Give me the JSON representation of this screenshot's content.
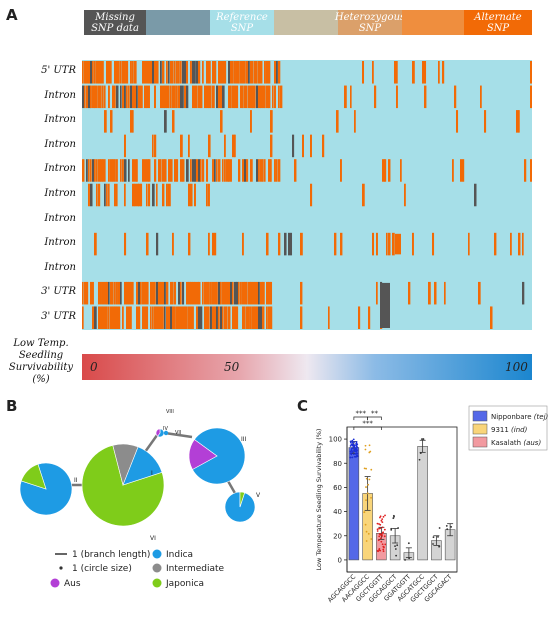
{
  "panels": {
    "a": "A",
    "b": "B",
    "c": "C"
  },
  "snp_legend": {
    "missing": "Missing SNP data",
    "reference": "Reference SNP",
    "heterozygous": "Heterozygous SNP",
    "alternate": "Alternate SNP",
    "colors": [
      "#555555",
      "#7a9aa8",
      "#a6dfe8",
      "#c8bfa4",
      "#dba06a",
      "#ef8e3e",
      "#f26a06"
    ]
  },
  "heatmap": {
    "rows": [
      "5' UTR",
      "Intron",
      "Intron",
      "Intron",
      "Intron",
      "Intron",
      "Intron",
      "Intron",
      "Intron",
      "3' UTR",
      "3' UTR"
    ],
    "colors": {
      "reference": "#a6dfe8",
      "alternate": "#f26a06",
      "missing": "#555555"
    }
  },
  "survivability_scale": {
    "label": "Low Temp. Seedling Survivability (%)",
    "min": "0",
    "mid": "50",
    "max": "100",
    "colors": [
      "#d94a4a",
      "#eee8f0",
      "#1b86cf"
    ]
  },
  "network": {
    "nodes": [
      {
        "id": "I",
        "label": "I",
        "slices": [
          {
            "group": "Japonica",
            "value": 0.76
          },
          {
            "group": "Intermediate",
            "value": 0.1
          },
          {
            "group": "Indica",
            "value": 0.14
          }
        ]
      },
      {
        "id": "II",
        "label": "II",
        "slices": [
          {
            "group": "Indica",
            "value": 0.85
          },
          {
            "group": "Japonica",
            "value": 0.15
          }
        ]
      },
      {
        "id": "III",
        "label": "III",
        "slices": [
          {
            "group": "Indica",
            "value": 0.82
          },
          {
            "group": "Aus",
            "value": 0.18
          }
        ]
      },
      {
        "id": "IV",
        "label": "IV",
        "slices": [
          {
            "group": "Indica",
            "value": 0.6
          },
          {
            "group": "Aus",
            "value": 0.4
          }
        ]
      },
      {
        "id": "V",
        "label": "V",
        "slices": [
          {
            "group": "Indica",
            "value": 0.95
          },
          {
            "group": "Japonica",
            "value": 0.05
          }
        ]
      },
      {
        "id": "VI",
        "label": "VI",
        "slices": [
          {
            "group": "Japonica",
            "value": 1.0
          }
        ]
      },
      {
        "id": "VII",
        "label": "VII",
        "slices": [
          {
            "group": "Indica",
            "value": 1.0
          }
        ]
      },
      {
        "id": "VIII",
        "label": "VIII",
        "slices": [
          {
            "group": "Indica",
            "value": 1.0
          }
        ]
      }
    ],
    "legend": {
      "branch": "1 (branch length)",
      "circle": "1 (circle size)",
      "items": [
        {
          "name": "Indica",
          "color": "#1e9be4"
        },
        {
          "name": "Intermediate",
          "color": "#8c8c8c"
        },
        {
          "name": "Aus",
          "color": "#b33fd6"
        },
        {
          "name": "Japonica",
          "color": "#7fcc1a"
        }
      ]
    }
  },
  "chart_data": {
    "type": "bar",
    "title": "",
    "ylabel": "Low Temperature Seedling Survivability (%)",
    "ylim": [
      -10,
      110
    ],
    "yticks": [
      "0",
      "20",
      "40",
      "60",
      "80",
      "100"
    ],
    "categories": [
      "AGCAGGCC",
      "AACAGGCC",
      "GGCTGGTT",
      "GGCAGGCT",
      "GGATGGTT",
      "AGCATGCC",
      "GGCTGGCT",
      "GGCAGACT"
    ],
    "values": [
      93,
      55,
      22,
      20,
      6,
      94,
      16,
      25
    ],
    "errors": [
      5,
      14,
      5,
      6,
      4,
      5,
      4,
      5
    ],
    "bar_colors": [
      "#5468e8",
      "#f9d57a",
      "#f29aa0",
      "#d4d4d4",
      "#d4d4d4",
      "#d4d4d4",
      "#d4d4d4",
      "#d4d4d4"
    ],
    "dot_colors": [
      "#1c2fd6",
      "#e0a020",
      "#e02020",
      "#333333",
      "#333333",
      "#333333",
      "#333333",
      "#333333"
    ],
    "legend": [
      {
        "name": "Nipponbare",
        "sub": "(tej)",
        "color": "#5468e8"
      },
      {
        "name": "9311",
        "sub": "(ind)",
        "color": "#f9d57a"
      },
      {
        "name": "Kasalath",
        "sub": "(aus)",
        "color": "#f29aa0"
      }
    ],
    "significance": [
      {
        "from": 0,
        "to": 2,
        "label": "***"
      },
      {
        "from": 0,
        "to": 1,
        "label": "***"
      },
      {
        "from": 1,
        "to": 2,
        "label": "**"
      }
    ]
  }
}
